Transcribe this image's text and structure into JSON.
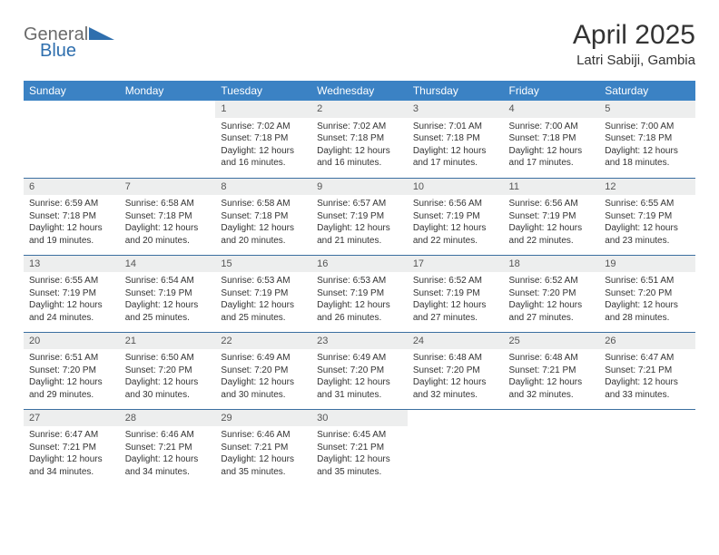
{
  "logo": {
    "text_general": "General",
    "text_blue": "Blue",
    "text_color_general": "#6b6b6b",
    "text_color_blue": "#2f6fae",
    "triangle_color": "#2f6fae"
  },
  "header": {
    "title": "April 2025",
    "location": "Latri Sabiji, Gambia"
  },
  "colors": {
    "header_row_bg": "#3b82c4",
    "header_row_text": "#ffffff",
    "day_header_bg": "#edeeee",
    "cell_border": "#3b6fa0",
    "text": "#333333"
  },
  "day_labels": [
    "Sunday",
    "Monday",
    "Tuesday",
    "Wednesday",
    "Thursday",
    "Friday",
    "Saturday"
  ],
  "weeks": [
    [
      null,
      null,
      {
        "d": "1",
        "sr": "7:02 AM",
        "ss": "7:18 PM",
        "dl": "12 hours and 16 minutes."
      },
      {
        "d": "2",
        "sr": "7:02 AM",
        "ss": "7:18 PM",
        "dl": "12 hours and 16 minutes."
      },
      {
        "d": "3",
        "sr": "7:01 AM",
        "ss": "7:18 PM",
        "dl": "12 hours and 17 minutes."
      },
      {
        "d": "4",
        "sr": "7:00 AM",
        "ss": "7:18 PM",
        "dl": "12 hours and 17 minutes."
      },
      {
        "d": "5",
        "sr": "7:00 AM",
        "ss": "7:18 PM",
        "dl": "12 hours and 18 minutes."
      }
    ],
    [
      {
        "d": "6",
        "sr": "6:59 AM",
        "ss": "7:18 PM",
        "dl": "12 hours and 19 minutes."
      },
      {
        "d": "7",
        "sr": "6:58 AM",
        "ss": "7:18 PM",
        "dl": "12 hours and 20 minutes."
      },
      {
        "d": "8",
        "sr": "6:58 AM",
        "ss": "7:18 PM",
        "dl": "12 hours and 20 minutes."
      },
      {
        "d": "9",
        "sr": "6:57 AM",
        "ss": "7:19 PM",
        "dl": "12 hours and 21 minutes."
      },
      {
        "d": "10",
        "sr": "6:56 AM",
        "ss": "7:19 PM",
        "dl": "12 hours and 22 minutes."
      },
      {
        "d": "11",
        "sr": "6:56 AM",
        "ss": "7:19 PM",
        "dl": "12 hours and 22 minutes."
      },
      {
        "d": "12",
        "sr": "6:55 AM",
        "ss": "7:19 PM",
        "dl": "12 hours and 23 minutes."
      }
    ],
    [
      {
        "d": "13",
        "sr": "6:55 AM",
        "ss": "7:19 PM",
        "dl": "12 hours and 24 minutes."
      },
      {
        "d": "14",
        "sr": "6:54 AM",
        "ss": "7:19 PM",
        "dl": "12 hours and 25 minutes."
      },
      {
        "d": "15",
        "sr": "6:53 AM",
        "ss": "7:19 PM",
        "dl": "12 hours and 25 minutes."
      },
      {
        "d": "16",
        "sr": "6:53 AM",
        "ss": "7:19 PM",
        "dl": "12 hours and 26 minutes."
      },
      {
        "d": "17",
        "sr": "6:52 AM",
        "ss": "7:19 PM",
        "dl": "12 hours and 27 minutes."
      },
      {
        "d": "18",
        "sr": "6:52 AM",
        "ss": "7:20 PM",
        "dl": "12 hours and 27 minutes."
      },
      {
        "d": "19",
        "sr": "6:51 AM",
        "ss": "7:20 PM",
        "dl": "12 hours and 28 minutes."
      }
    ],
    [
      {
        "d": "20",
        "sr": "6:51 AM",
        "ss": "7:20 PM",
        "dl": "12 hours and 29 minutes."
      },
      {
        "d": "21",
        "sr": "6:50 AM",
        "ss": "7:20 PM",
        "dl": "12 hours and 30 minutes."
      },
      {
        "d": "22",
        "sr": "6:49 AM",
        "ss": "7:20 PM",
        "dl": "12 hours and 30 minutes."
      },
      {
        "d": "23",
        "sr": "6:49 AM",
        "ss": "7:20 PM",
        "dl": "12 hours and 31 minutes."
      },
      {
        "d": "24",
        "sr": "6:48 AM",
        "ss": "7:20 PM",
        "dl": "12 hours and 32 minutes."
      },
      {
        "d": "25",
        "sr": "6:48 AM",
        "ss": "7:21 PM",
        "dl": "12 hours and 32 minutes."
      },
      {
        "d": "26",
        "sr": "6:47 AM",
        "ss": "7:21 PM",
        "dl": "12 hours and 33 minutes."
      }
    ],
    [
      {
        "d": "27",
        "sr": "6:47 AM",
        "ss": "7:21 PM",
        "dl": "12 hours and 34 minutes."
      },
      {
        "d": "28",
        "sr": "6:46 AM",
        "ss": "7:21 PM",
        "dl": "12 hours and 34 minutes."
      },
      {
        "d": "29",
        "sr": "6:46 AM",
        "ss": "7:21 PM",
        "dl": "12 hours and 35 minutes."
      },
      {
        "d": "30",
        "sr": "6:45 AM",
        "ss": "7:21 PM",
        "dl": "12 hours and 35 minutes."
      },
      null,
      null,
      null
    ]
  ],
  "labels": {
    "sunrise": "Sunrise:",
    "sunset": "Sunset:",
    "daylight": "Daylight:"
  }
}
